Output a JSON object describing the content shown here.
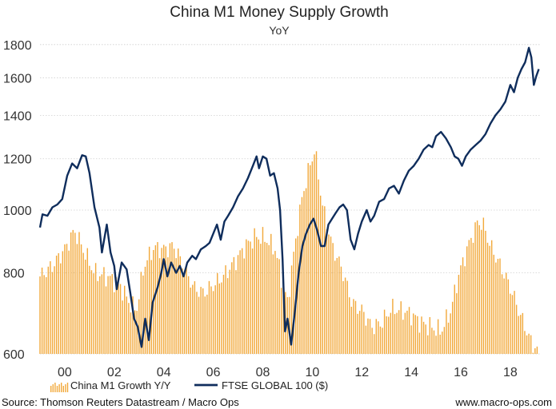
{
  "chart_data": {
    "type": "bar+line",
    "title": "China M1 Money Supply Growth",
    "subtitle": "YoY",
    "y_axis": {
      "scale": "log",
      "range": [
        600,
        1830
      ],
      "ticks": [
        600,
        800,
        1000,
        1200,
        1400,
        1600,
        1800
      ]
    },
    "x_axis": {
      "range": [
        1999.0,
        2019.2
      ],
      "ticks": [
        2000,
        2002,
        2004,
        2006,
        2008,
        2010,
        2012,
        2014,
        2016,
        2018
      ],
      "tick_labels": [
        "00",
        "02",
        "04",
        "06",
        "08",
        "10",
        "12",
        "14",
        "16",
        "18"
      ]
    },
    "grid": "horizontal dotted",
    "legend_position": "bottom",
    "series": [
      {
        "name": "China M1 Growth Y/Y",
        "type": "bar",
        "color": "#f2a93b",
        "points": [
          [
            1999.0,
            790
          ],
          [
            1999.5,
            820
          ],
          [
            2000.0,
            870
          ],
          [
            2000.4,
            930
          ],
          [
            2000.8,
            860
          ],
          [
            2001.2,
            800
          ],
          [
            2001.7,
            790
          ],
          [
            2002.2,
            770
          ],
          [
            2002.6,
            720
          ],
          [
            2002.9,
            700
          ],
          [
            2003.2,
            820
          ],
          [
            2003.6,
            875
          ],
          [
            2004.0,
            870
          ],
          [
            2004.4,
            880
          ],
          [
            2004.8,
            820
          ],
          [
            2005.2,
            760
          ],
          [
            2005.6,
            745
          ],
          [
            2006.0,
            765
          ],
          [
            2006.4,
            790
          ],
          [
            2006.9,
            835
          ],
          [
            2007.3,
            880
          ],
          [
            2007.7,
            910
          ],
          [
            2008.1,
            905
          ],
          [
            2008.5,
            870
          ],
          [
            2008.8,
            770
          ],
          [
            2009.0,
            720
          ],
          [
            2009.3,
            880
          ],
          [
            2009.6,
            1050
          ],
          [
            2009.9,
            1170
          ],
          [
            2010.1,
            1240
          ],
          [
            2010.4,
            1020
          ],
          [
            2010.8,
            880
          ],
          [
            2011.2,
            810
          ],
          [
            2011.6,
            720
          ],
          [
            2012.0,
            700
          ],
          [
            2012.4,
            660
          ],
          [
            2012.8,
            670
          ],
          [
            2013.2,
            705
          ],
          [
            2013.6,
            700
          ],
          [
            2014.0,
            690
          ],
          [
            2014.4,
            670
          ],
          [
            2014.8,
            660
          ],
          [
            2015.2,
            650
          ],
          [
            2015.6,
            700
          ],
          [
            2015.9,
            790
          ],
          [
            2016.3,
            880
          ],
          [
            2016.7,
            960
          ],
          [
            2016.9,
            950
          ],
          [
            2017.2,
            880
          ],
          [
            2017.6,
            820
          ],
          [
            2018.0,
            760
          ],
          [
            2018.4,
            690
          ],
          [
            2018.8,
            630
          ],
          [
            2019.1,
            605
          ]
        ]
      },
      {
        "name": "FTSE GLOBAL 100 ($)",
        "type": "line",
        "color": "#0f2d5c",
        "points": [
          [
            1999.0,
            940
          ],
          [
            1999.1,
            985
          ],
          [
            1999.3,
            980
          ],
          [
            1999.5,
            1010
          ],
          [
            1999.7,
            1020
          ],
          [
            1999.9,
            1040
          ],
          [
            2000.1,
            1130
          ],
          [
            2000.3,
            1180
          ],
          [
            2000.5,
            1160
          ],
          [
            2000.7,
            1215
          ],
          [
            2000.85,
            1210
          ],
          [
            2001.0,
            1140
          ],
          [
            2001.2,
            1010
          ],
          [
            2001.4,
            940
          ],
          [
            2001.5,
            860
          ],
          [
            2001.7,
            950
          ],
          [
            2001.85,
            860
          ],
          [
            2002.0,
            820
          ],
          [
            2002.1,
            755
          ],
          [
            2002.3,
            830
          ],
          [
            2002.5,
            810
          ],
          [
            2002.65,
            745
          ],
          [
            2002.8,
            680
          ],
          [
            2002.95,
            660
          ],
          [
            2003.1,
            615
          ],
          [
            2003.25,
            680
          ],
          [
            2003.4,
            630
          ],
          [
            2003.55,
            720
          ],
          [
            2003.75,
            760
          ],
          [
            2003.9,
            800
          ],
          [
            2004.0,
            840
          ],
          [
            2004.15,
            790
          ],
          [
            2004.3,
            830
          ],
          [
            2004.5,
            800
          ],
          [
            2004.65,
            820
          ],
          [
            2004.8,
            790
          ],
          [
            2004.95,
            830
          ],
          [
            2005.15,
            850
          ],
          [
            2005.3,
            840
          ],
          [
            2005.5,
            870
          ],
          [
            2005.7,
            880
          ],
          [
            2005.85,
            890
          ],
          [
            2006.0,
            920
          ],
          [
            2006.15,
            950
          ],
          [
            2006.3,
            900
          ],
          [
            2006.45,
            960
          ],
          [
            2006.6,
            980
          ],
          [
            2006.8,
            1010
          ],
          [
            2007.0,
            1050
          ],
          [
            2007.2,
            1080
          ],
          [
            2007.4,
            1120
          ],
          [
            2007.6,
            1170
          ],
          [
            2007.75,
            1210
          ],
          [
            2007.85,
            1160
          ],
          [
            2008.0,
            1210
          ],
          [
            2008.15,
            1200
          ],
          [
            2008.3,
            1130
          ],
          [
            2008.45,
            1140
          ],
          [
            2008.6,
            1080
          ],
          [
            2008.7,
            1000
          ],
          [
            2008.8,
            840
          ],
          [
            2008.9,
            650
          ],
          [
            2009.0,
            680
          ],
          [
            2009.15,
            620
          ],
          [
            2009.3,
            700
          ],
          [
            2009.45,
            800
          ],
          [
            2009.6,
            880
          ],
          [
            2009.75,
            920
          ],
          [
            2009.9,
            950
          ],
          [
            2010.05,
            970
          ],
          [
            2010.2,
            930
          ],
          [
            2010.35,
            880
          ],
          [
            2010.5,
            880
          ],
          [
            2010.65,
            950
          ],
          [
            2010.8,
            970
          ],
          [
            2010.95,
            990
          ],
          [
            2011.1,
            1010
          ],
          [
            2011.25,
            1020
          ],
          [
            2011.4,
            1000
          ],
          [
            2011.55,
            900
          ],
          [
            2011.7,
            870
          ],
          [
            2011.85,
            920
          ],
          [
            2012.0,
            960
          ],
          [
            2012.2,
            1000
          ],
          [
            2012.35,
            960
          ],
          [
            2012.5,
            980
          ],
          [
            2012.7,
            1030
          ],
          [
            2012.9,
            1040
          ],
          [
            2013.1,
            1080
          ],
          [
            2013.3,
            1090
          ],
          [
            2013.5,
            1060
          ],
          [
            2013.7,
            1110
          ],
          [
            2013.9,
            1150
          ],
          [
            2014.1,
            1170
          ],
          [
            2014.3,
            1200
          ],
          [
            2014.5,
            1240
          ],
          [
            2014.7,
            1260
          ],
          [
            2014.85,
            1250
          ],
          [
            2015.0,
            1300
          ],
          [
            2015.2,
            1320
          ],
          [
            2015.4,
            1290
          ],
          [
            2015.6,
            1250
          ],
          [
            2015.75,
            1210
          ],
          [
            2015.9,
            1200
          ],
          [
            2016.05,
            1170
          ],
          [
            2016.2,
            1210
          ],
          [
            2016.4,
            1240
          ],
          [
            2016.6,
            1260
          ],
          [
            2016.8,
            1280
          ],
          [
            2017.0,
            1310
          ],
          [
            2017.2,
            1360
          ],
          [
            2017.4,
            1400
          ],
          [
            2017.6,
            1430
          ],
          [
            2017.8,
            1470
          ],
          [
            2018.0,
            1560
          ],
          [
            2018.15,
            1520
          ],
          [
            2018.3,
            1600
          ],
          [
            2018.45,
            1650
          ],
          [
            2018.6,
            1690
          ],
          [
            2018.75,
            1780
          ],
          [
            2018.85,
            1720
          ],
          [
            2018.95,
            1560
          ],
          [
            2019.05,
            1610
          ],
          [
            2019.15,
            1650
          ]
        ]
      }
    ]
  },
  "footer": {
    "source": "Source: Thomson Reuters Datastream / Macro Ops",
    "website": "www.macro-ops.com"
  }
}
